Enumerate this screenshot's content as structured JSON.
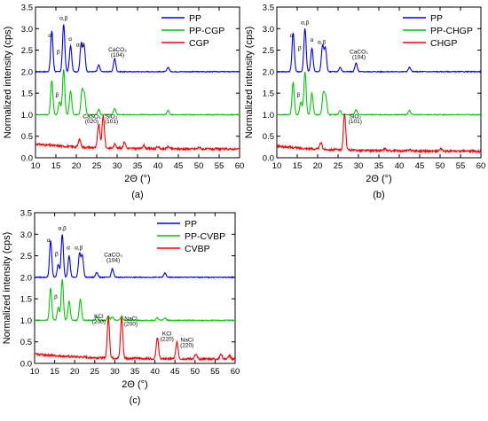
{
  "chart_data": [
    {
      "panel": "a",
      "type": "line",
      "caption": "(a)",
      "xlabel": "2Θ (°)",
      "ylabel": "Normalized intensity (cps)",
      "xlim": [
        10,
        60
      ],
      "ylim": [
        0,
        3.5
      ],
      "xticks": [
        "10",
        "15",
        "20",
        "25",
        "30",
        "35",
        "40",
        "45",
        "50",
        "55",
        "60"
      ],
      "yticks": [
        "0.0",
        "0.5",
        "1.0",
        "1.5",
        "2.0",
        "2.5",
        "3.0",
        "3.5"
      ],
      "grid": false,
      "legend_position": "top-right",
      "series": [
        {
          "name": "PP",
          "color": "#0000ff",
          "offset": 2.0,
          "peaks": [
            [
              14.0,
              0.95
            ],
            [
              16.9,
              1.1
            ],
            [
              18.6,
              0.6
            ],
            [
              21.2,
              0.65
            ],
            [
              21.9,
              0.6
            ],
            [
              25.5,
              0.15
            ],
            [
              29.4,
              0.3
            ],
            [
              42.5,
              0.1
            ]
          ]
        },
        {
          "name": "PP-CGP",
          "color": "#00cc00",
          "offset": 1.0,
          "peaks": [
            [
              14.0,
              0.8
            ],
            [
              15.9,
              0.3
            ],
            [
              16.9,
              1.05
            ],
            [
              18.6,
              0.55
            ],
            [
              21.4,
              0.55
            ],
            [
              22.0,
              0.45
            ],
            [
              25.5,
              0.12
            ],
            [
              29.4,
              0.15
            ],
            [
              42.5,
              0.1
            ]
          ]
        },
        {
          "name": "CGP",
          "color": "#ff0000",
          "offset": 0.2,
          "peaks": [
            [
              20.8,
              0.18
            ],
            [
              25.5,
              0.55
            ],
            [
              26.6,
              0.75
            ],
            [
              29.5,
              0.1
            ],
            [
              31.8,
              0.15
            ],
            [
              36.5,
              0.08
            ],
            [
              40.0,
              0.05
            ],
            [
              42.5,
              0.05
            ],
            [
              50.1,
              0.04
            ]
          ]
        }
      ],
      "annotations": [
        {
          "text": "α",
          "x": 13.5,
          "y": 2.8
        },
        {
          "text": "β",
          "x": 15.6,
          "y": 2.42
        },
        {
          "text": "α,β",
          "x": 16.9,
          "y": 3.2
        },
        {
          "text": "α",
          "x": 18.5,
          "y": 2.72
        },
        {
          "text": "α,β",
          "x": 21.0,
          "y": 2.58
        },
        {
          "text": "β",
          "x": 15.3,
          "y": 1.42
        },
        {
          "text": "CaCO₃",
          "x": 30.1,
          "y": 2.47
        },
        {
          "text": "(104)",
          "x": 30.1,
          "y": 2.35
        },
        {
          "text": "CaSO₄",
          "x": 23.8,
          "y": 0.92
        },
        {
          "text": "(020)",
          "x": 23.8,
          "y": 0.8
        },
        {
          "text": "SiO₂",
          "x": 28.6,
          "y": 0.92
        },
        {
          "text": "(101)",
          "x": 28.6,
          "y": 0.8
        }
      ]
    },
    {
      "panel": "b",
      "type": "line",
      "caption": "(b)",
      "xlabel": "2Θ (°)",
      "ylabel": "Normalized intensity (cps)",
      "xlim": [
        10,
        60
      ],
      "ylim": [
        0,
        3.5
      ],
      "xticks": [
        "10",
        "15",
        "20",
        "25",
        "30",
        "35",
        "40",
        "45",
        "50",
        "55",
        "60"
      ],
      "yticks": [
        "0.0",
        "0.5",
        "1.0",
        "1.5",
        "2.0",
        "2.5",
        "3.0",
        "3.5"
      ],
      "grid": false,
      "legend_position": "top-right",
      "series": [
        {
          "name": "PP",
          "color": "#0000ff",
          "offset": 2.0,
          "peaks": [
            [
              14.0,
              0.9
            ],
            [
              16.9,
              1.0
            ],
            [
              18.6,
              0.55
            ],
            [
              21.2,
              0.6
            ],
            [
              21.9,
              0.55
            ],
            [
              25.5,
              0.1
            ],
            [
              29.4,
              0.2
            ],
            [
              42.5,
              0.1
            ]
          ]
        },
        {
          "name": "PP-CHGP",
          "color": "#00cc00",
          "offset": 1.0,
          "peaks": [
            [
              14.0,
              0.75
            ],
            [
              15.9,
              0.3
            ],
            [
              16.9,
              1.0
            ],
            [
              18.6,
              0.5
            ],
            [
              21.4,
              0.5
            ],
            [
              22.0,
              0.4
            ],
            [
              25.5,
              0.1
            ],
            [
              29.4,
              0.12
            ],
            [
              42.5,
              0.1
            ]
          ]
        },
        {
          "name": "CHGP",
          "color": "#ff0000",
          "offset": 0.15,
          "peaks": [
            [
              20.8,
              0.15
            ],
            [
              26.6,
              0.85
            ],
            [
              36.5,
              0.05
            ],
            [
              42.5,
              0.04
            ],
            [
              50.1,
              0.05
            ]
          ]
        }
      ],
      "annotations": [
        {
          "text": "α",
          "x": 13.6,
          "y": 2.8
        },
        {
          "text": "β",
          "x": 15.6,
          "y": 2.5
        },
        {
          "text": "α,β",
          "x": 16.9,
          "y": 3.1
        },
        {
          "text": "α",
          "x": 18.6,
          "y": 2.7
        },
        {
          "text": "α,β",
          "x": 21.0,
          "y": 2.65
        },
        {
          "text": "β",
          "x": 15.3,
          "y": 1.42
        },
        {
          "text": "CaCO₃",
          "x": 30.1,
          "y": 2.42
        },
        {
          "text": "(104)",
          "x": 30.1,
          "y": 2.3
        },
        {
          "text": "SiO₂",
          "x": 29.2,
          "y": 0.92
        },
        {
          "text": "(101)",
          "x": 29.2,
          "y": 0.8
        }
      ]
    },
    {
      "panel": "c",
      "type": "line",
      "caption": "(c)",
      "xlabel": "2Θ (°)",
      "ylabel": "Normalized intensity (cps)",
      "xlim": [
        10,
        60
      ],
      "ylim": [
        0,
        3.5
      ],
      "xticks": [
        "10",
        "15",
        "20",
        "25",
        "30",
        "35",
        "40",
        "45",
        "50",
        "55",
        "60"
      ],
      "yticks": [
        "0.0",
        "0.5",
        "1.0",
        "1.5",
        "2.0",
        "2.5",
        "3.0",
        "3.5"
      ],
      "grid": false,
      "legend_position": "top-right",
      "series": [
        {
          "name": "PP",
          "color": "#0000ff",
          "offset": 2.0,
          "peaks": [
            [
              14.0,
              0.85
            ],
            [
              15.9,
              0.3
            ],
            [
              16.9,
              1.0
            ],
            [
              18.6,
              0.5
            ],
            [
              21.2,
              0.55
            ],
            [
              21.9,
              0.5
            ],
            [
              25.5,
              0.12
            ],
            [
              29.4,
              0.2
            ],
            [
              42.5,
              0.1
            ]
          ]
        },
        {
          "name": "PP-CVBP",
          "color": "#00cc00",
          "offset": 1.0,
          "peaks": [
            [
              14.0,
              0.75
            ],
            [
              15.9,
              0.3
            ],
            [
              16.9,
              0.95
            ],
            [
              18.6,
              0.45
            ],
            [
              21.4,
              0.5
            ],
            [
              25.5,
              0.08
            ],
            [
              28.4,
              0.1
            ],
            [
              29.4,
              0.08
            ],
            [
              31.7,
              0.1
            ],
            [
              40.6,
              0.06
            ],
            [
              42.5,
              0.06
            ]
          ]
        },
        {
          "name": "CVBP",
          "color": "#ff0000",
          "offset": 0.1,
          "peaks": [
            [
              28.4,
              0.95
            ],
            [
              31.7,
              0.95
            ],
            [
              40.6,
              0.5
            ],
            [
              45.5,
              0.4
            ],
            [
              50.2,
              0.1
            ],
            [
              56.5,
              0.12
            ],
            [
              58.6,
              0.08
            ]
          ]
        }
      ],
      "annotations": [
        {
          "text": "α",
          "x": 13.5,
          "y": 2.82
        },
        {
          "text": "β",
          "x": 15.5,
          "y": 2.5
        },
        {
          "text": "α,β",
          "x": 16.9,
          "y": 3.1
        },
        {
          "text": "α",
          "x": 18.4,
          "y": 2.65
        },
        {
          "text": "α,β",
          "x": 21.0,
          "y": 2.65
        },
        {
          "text": "β",
          "x": 15.3,
          "y": 1.5
        },
        {
          "text": "CaCO₃",
          "x": 29.6,
          "y": 2.48
        },
        {
          "text": "(104)",
          "x": 29.6,
          "y": 2.36
        },
        {
          "text": "KCl",
          "x": 26.0,
          "y": 1.05
        },
        {
          "text": "(200)",
          "x": 26.0,
          "y": 0.93
        },
        {
          "text": "NaCl",
          "x": 34.0,
          "y": 1.0
        },
        {
          "text": "(200)",
          "x": 34.0,
          "y": 0.88
        },
        {
          "text": "KCl",
          "x": 43.0,
          "y": 0.65
        },
        {
          "text": "(220)",
          "x": 43.0,
          "y": 0.53
        },
        {
          "text": "NaCl",
          "x": 48.0,
          "y": 0.5
        },
        {
          "text": "(220)",
          "x": 48.0,
          "y": 0.38
        }
      ]
    }
  ]
}
